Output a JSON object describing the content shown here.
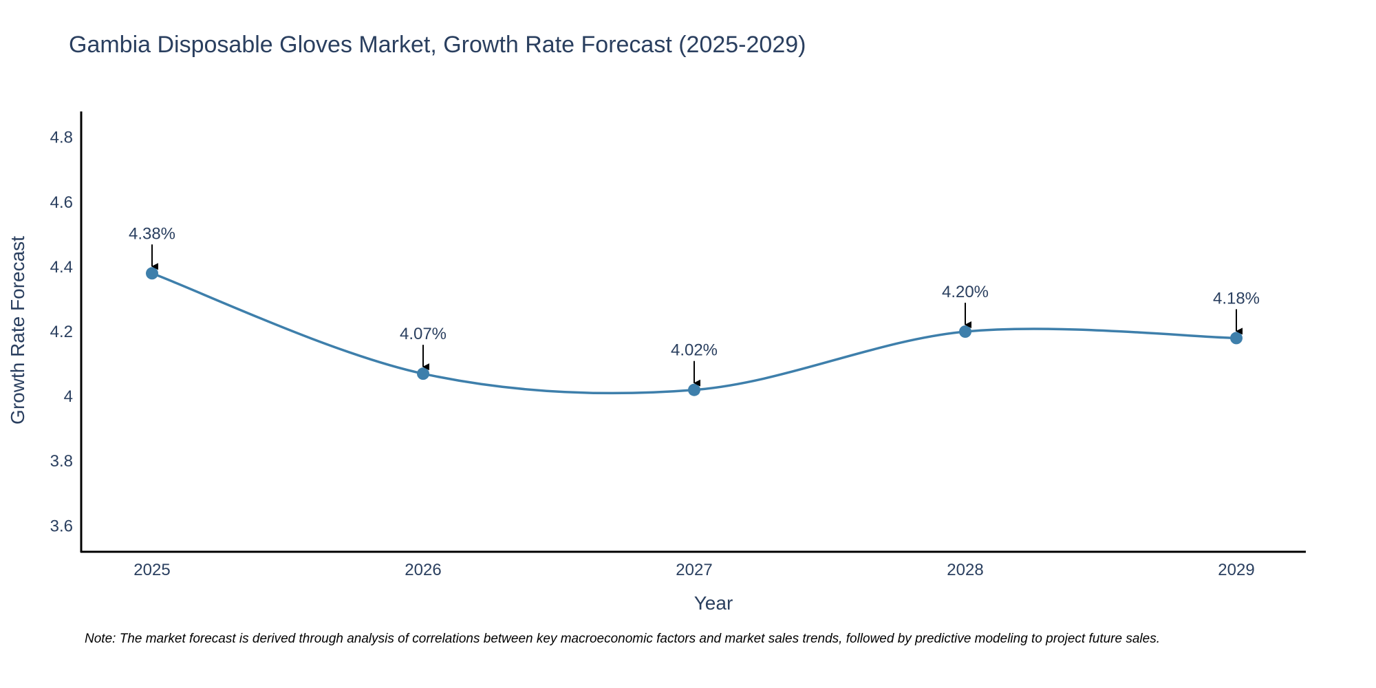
{
  "chart_data": {
    "type": "line",
    "title": "Gambia Disposable Gloves Market, Growth Rate Forecast (2025-2029)",
    "xlabel": "Year",
    "ylabel": "Growth Rate Forecast",
    "categories": [
      "2025",
      "2026",
      "2027",
      "2028",
      "2029"
    ],
    "series": [
      {
        "name": "Growth Rate Forecast",
        "values": [
          4.38,
          4.07,
          4.02,
          4.2,
          4.18
        ],
        "labels": [
          "4.38%",
          "4.07%",
          "4.02%",
          "4.20%",
          "4.18%"
        ]
      }
    ],
    "ylim": [
      3.52,
      4.88
    ],
    "yticks": [
      3.6,
      3.8,
      4.0,
      4.2,
      4.4,
      4.6,
      4.8
    ],
    "ytick_labels": [
      "3.6",
      "3.8",
      "4",
      "4.2",
      "4.4",
      "4.6",
      "4.8"
    ],
    "grid": false,
    "line_shape": "spline"
  },
  "note": "Note: The market forecast is derived through analysis of correlations between key macroeconomic factors and market sales trends, followed by predictive modeling to project future sales.",
  "colors": {
    "line": "#3e7fab",
    "marker": "#3e7fab",
    "text": "#2a3f5f",
    "axis": "#000000",
    "arrow": "#000000"
  }
}
